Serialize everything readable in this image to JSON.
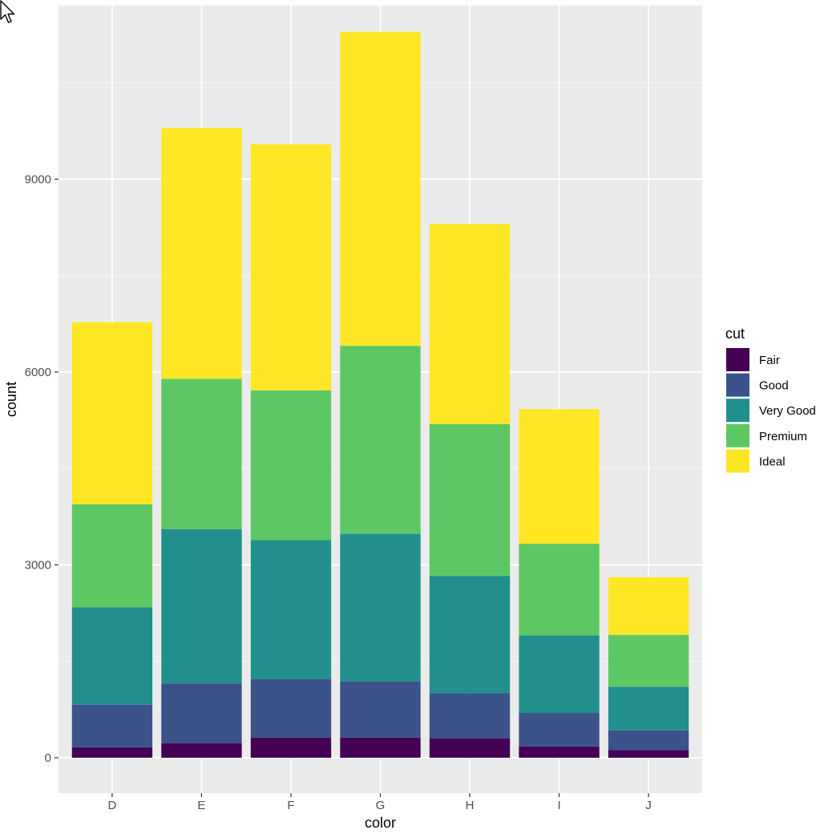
{
  "chart_data": {
    "type": "bar",
    "stacked": true,
    "title": "",
    "xlabel": "color",
    "ylabel": "count",
    "categories": [
      "D",
      "E",
      "F",
      "G",
      "H",
      "I",
      "J"
    ],
    "ylim": [
      -550,
      11700
    ],
    "yticks": [
      0,
      3000,
      6000,
      9000
    ],
    "ytick_labels": [
      "0",
      "3000",
      "6000",
      "9000"
    ],
    "grid": true,
    "legend": {
      "title": "cut",
      "position": "right"
    },
    "series": [
      {
        "name": "Fair",
        "color": "#440154",
        "values": [
          163,
          224,
          312,
          314,
          303,
          175,
          119
        ]
      },
      {
        "name": "Good",
        "color": "#3B528B",
        "values": [
          662,
          933,
          909,
          871,
          702,
          522,
          307
        ]
      },
      {
        "name": "Very Good",
        "color": "#21908C",
        "values": [
          1513,
          2400,
          2164,
          2299,
          1824,
          1204,
          678
        ]
      },
      {
        "name": "Premium",
        "color": "#5DC863",
        "values": [
          1603,
          2337,
          2331,
          2924,
          2360,
          1428,
          808
        ]
      },
      {
        "name": "Ideal",
        "color": "#FDE725",
        "values": [
          2834,
          3903,
          3826,
          4884,
          3115,
          2093,
          896
        ]
      }
    ],
    "colors": {
      "panel_bg": "#EBEBEB",
      "grid_major": "#FFFFFF",
      "tick_text": "#4D4D4D"
    }
  }
}
